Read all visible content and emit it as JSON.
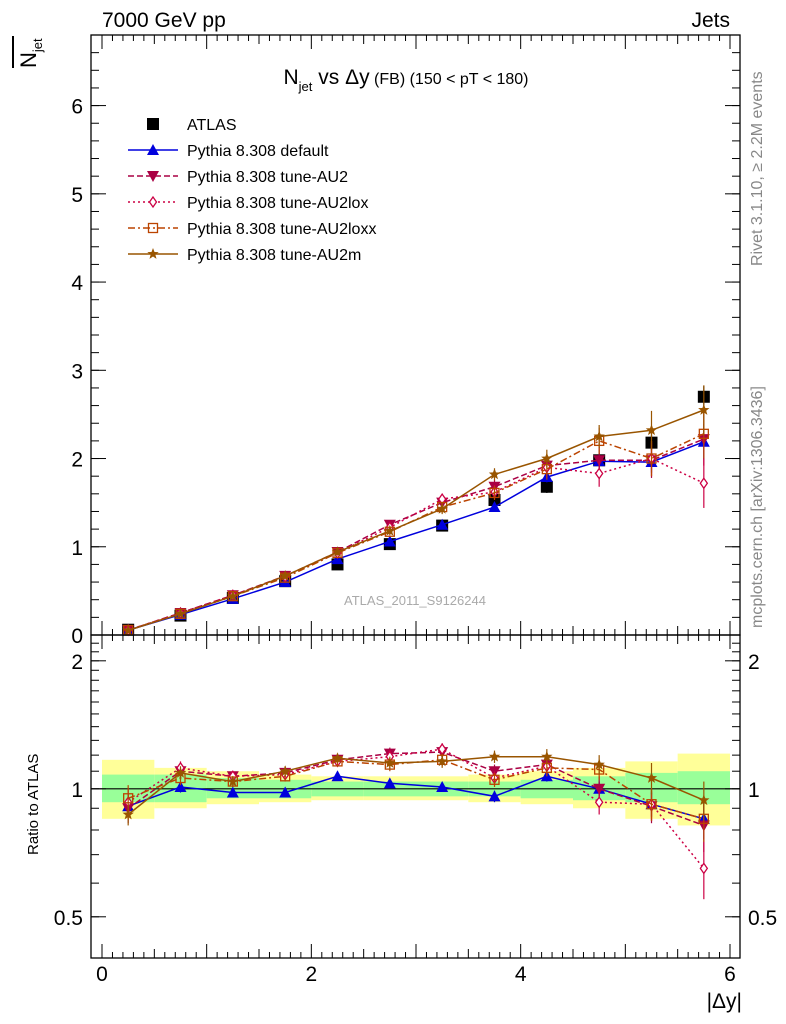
{
  "header": {
    "left": "7000 GeV pp",
    "right": "Jets"
  },
  "side_labels": {
    "rivet": "Rivet 3.1.10, ≥ 2.2M events",
    "mcplots": "mcplots.cern.ch [arXiv:1306.3436]"
  },
  "watermark": "ATLAS_2011_S9126244",
  "colors": {
    "atlas": "#000000",
    "default": "#0000dd",
    "au2": "#aa0044",
    "au2lox": "#cc0044",
    "au2loxx": "#bb4400",
    "au2m": "#995500",
    "band_inner": "#99ff99",
    "band_outer": "#ffff99"
  },
  "chart_data": [
    {
      "type": "line",
      "title": "N_jet vs Δy (FB) (150 < pT < 180)",
      "title_parts": {
        "main": "N",
        "sub": "jet",
        "vs": " vs ",
        "dy": "Δy",
        "fb": " (FB)",
        "range": " (150 < pT < 180)"
      },
      "ylabel": "N_jet (mean, overlined)",
      "ylabel_parts": {
        "main": "N",
        "sub": "jet"
      },
      "xlabel": "|Δy|",
      "xlim": [
        0,
        6
      ],
      "ylim": [
        0,
        6.8
      ],
      "y_ticks": [
        0,
        1,
        2,
        3,
        4,
        5,
        6
      ],
      "x_ticks": [
        0,
        2,
        4,
        6
      ],
      "legend_position": "top-left",
      "x": [
        0.25,
        0.75,
        1.25,
        1.75,
        2.25,
        2.75,
        3.25,
        3.75,
        4.25,
        4.75,
        5.25,
        5.75
      ],
      "series": [
        {
          "name": "ATLAS",
          "key": "atlas",
          "marker": "square",
          "line": "none",
          "values": [
            0.06,
            0.22,
            0.42,
            0.61,
            0.8,
            1.03,
            1.24,
            1.53,
            1.68,
            1.98,
            2.18,
            2.7
          ],
          "err": [
            0.01,
            0.01,
            0.02,
            0.02,
            0.03,
            0.04,
            0.05,
            0.06,
            0.07,
            0.08,
            0.09,
            0.12
          ]
        },
        {
          "name": "Pythia 8.308 default",
          "key": "default",
          "marker": "triangle",
          "line": "solid",
          "values": [
            0.055,
            0.23,
            0.41,
            0.6,
            0.86,
            1.06,
            1.25,
            1.45,
            1.79,
            1.97,
            1.96,
            2.19
          ],
          "err": [
            0.01,
            0.01,
            0.01,
            0.01,
            0.02,
            0.02,
            0.03,
            0.04,
            0.06,
            0.08,
            0.12,
            0.2
          ]
        },
        {
          "name": "Pythia 8.308 tune-AU2",
          "key": "au2",
          "marker": "triangle-down",
          "line": "dashed",
          "values": [
            0.054,
            0.25,
            0.45,
            0.67,
            0.94,
            1.25,
            1.5,
            1.68,
            1.92,
            1.98,
            1.98,
            2.22
          ],
          "err": [
            0.01,
            0.01,
            0.02,
            0.02,
            0.03,
            0.04,
            0.06,
            0.08,
            0.12,
            0.15,
            0.2,
            0.3
          ]
        },
        {
          "name": "Pythia 8.308 tune-AU2lox",
          "key": "au2lox",
          "marker": "diamond",
          "line": "dotted",
          "values": [
            0.056,
            0.25,
            0.45,
            0.66,
            0.93,
            1.22,
            1.54,
            1.62,
            1.9,
            1.83,
            2.0,
            1.72
          ],
          "err": [
            0.01,
            0.01,
            0.02,
            0.02,
            0.03,
            0.04,
            0.06,
            0.08,
            0.12,
            0.15,
            0.2,
            0.28
          ]
        },
        {
          "name": "Pythia 8.308 tune-AU2loxx",
          "key": "au2loxx",
          "marker": "open-square",
          "line": "dashdot",
          "values": [
            0.057,
            0.24,
            0.44,
            0.65,
            0.93,
            1.17,
            1.45,
            1.61,
            1.88,
            2.2,
            2.0,
            2.28
          ],
          "err": [
            0.01,
            0.01,
            0.02,
            0.02,
            0.03,
            0.04,
            0.06,
            0.08,
            0.12,
            0.15,
            0.2,
            0.28
          ]
        },
        {
          "name": "Pythia 8.308 tune-AU2m",
          "key": "au2m",
          "marker": "star",
          "line": "solid",
          "values": [
            0.052,
            0.24,
            0.44,
            0.67,
            0.94,
            1.18,
            1.43,
            1.82,
            2.0,
            2.25,
            2.32,
            2.55
          ],
          "err": [
            0.01,
            0.01,
            0.02,
            0.02,
            0.03,
            0.04,
            0.06,
            0.07,
            0.1,
            0.13,
            0.22,
            0.28
          ]
        }
      ]
    },
    {
      "type": "line",
      "title": "",
      "ylabel": "Ratio to ATLAS",
      "xlabel": "|Δy|",
      "xlim": [
        0,
        6
      ],
      "ylim": [
        0.4,
        2.3
      ],
      "log_y": true,
      "y_ticks": [
        0.5,
        1,
        2
      ],
      "x_ticks": [
        0,
        2,
        4,
        6
      ],
      "x": [
        0.25,
        0.75,
        1.25,
        1.75,
        2.25,
        2.75,
        3.25,
        3.75,
        4.25,
        4.75,
        5.25,
        5.75
      ],
      "band_edges": [
        0,
        0.5,
        1.0,
        1.5,
        2.0,
        2.5,
        3.0,
        3.5,
        4.0,
        4.5,
        5.0,
        5.5,
        6.0
      ],
      "band_inner_lo": [
        0.93,
        0.93,
        0.95,
        0.95,
        0.96,
        0.96,
        0.96,
        0.96,
        0.95,
        0.94,
        0.93,
        0.92
      ],
      "band_inner_hi": [
        1.08,
        1.08,
        1.06,
        1.05,
        1.04,
        1.04,
        1.04,
        1.04,
        1.05,
        1.07,
        1.09,
        1.1
      ],
      "band_outer_lo": [
        0.85,
        0.9,
        0.92,
        0.93,
        0.94,
        0.94,
        0.94,
        0.93,
        0.92,
        0.9,
        0.85,
        0.82
      ],
      "band_outer_hi": [
        1.17,
        1.12,
        1.1,
        1.08,
        1.07,
        1.07,
        1.07,
        1.08,
        1.1,
        1.12,
        1.16,
        1.21
      ],
      "series": [
        {
          "key": "default",
          "values": [
            0.91,
            1.01,
            0.98,
            0.98,
            1.07,
            1.03,
            1.01,
            0.96,
            1.07,
            1.0,
            0.92,
            0.85
          ],
          "err": [
            0.05,
            0.03,
            0.02,
            0.02,
            0.02,
            0.02,
            0.02,
            0.03,
            0.03,
            0.04,
            0.06,
            0.09
          ]
        },
        {
          "key": "au2",
          "values": [
            0.9,
            1.1,
            1.07,
            1.09,
            1.17,
            1.21,
            1.22,
            1.1,
            1.14,
            1.0,
            0.91,
            0.82
          ],
          "err": [
            0.07,
            0.04,
            0.03,
            0.03,
            0.03,
            0.04,
            0.04,
            0.04,
            0.05,
            0.07,
            0.08,
            0.11
          ]
        },
        {
          "key": "au2lox",
          "values": [
            0.93,
            1.12,
            1.07,
            1.08,
            1.16,
            1.19,
            1.24,
            1.06,
            1.13,
            0.93,
            0.92,
            0.65
          ],
          "err": [
            0.07,
            0.04,
            0.03,
            0.03,
            0.03,
            0.04,
            0.04,
            0.04,
            0.05,
            0.06,
            0.08,
            0.1
          ]
        },
        {
          "key": "au2loxx",
          "values": [
            0.95,
            1.06,
            1.04,
            1.07,
            1.16,
            1.14,
            1.17,
            1.05,
            1.12,
            1.11,
            0.92,
            0.85
          ],
          "err": [
            0.07,
            0.04,
            0.03,
            0.03,
            0.03,
            0.04,
            0.04,
            0.04,
            0.05,
            0.06,
            0.08,
            0.1
          ]
        },
        {
          "key": "au2m",
          "values": [
            0.87,
            1.09,
            1.04,
            1.1,
            1.18,
            1.15,
            1.16,
            1.19,
            1.19,
            1.14,
            1.06,
            0.94
          ],
          "err": [
            0.05,
            0.04,
            0.03,
            0.03,
            0.03,
            0.04,
            0.04,
            0.04,
            0.05,
            0.06,
            0.09,
            0.1
          ]
        }
      ]
    }
  ]
}
